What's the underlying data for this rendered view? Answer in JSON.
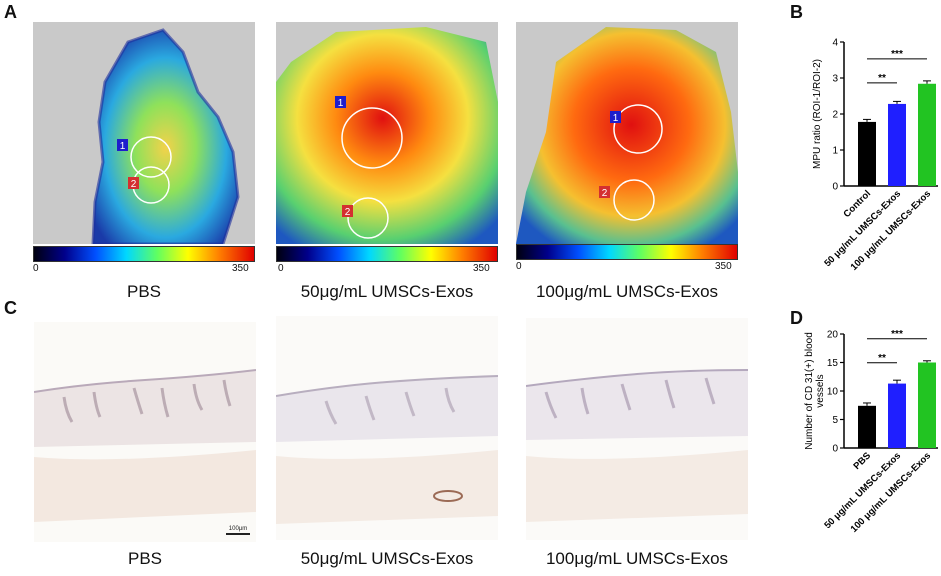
{
  "panel_letters": {
    "a": "A",
    "b": "B",
    "c": "C",
    "d": "D"
  },
  "panel_a": {
    "images": [
      {
        "caption": "PBS",
        "roi1": "1",
        "roi2": "2",
        "cb_min": "0",
        "cb_max": "350"
      },
      {
        "caption": "50μg/mL UMSCs-Exos",
        "roi1": "1",
        "roi2": "2",
        "cb_min": "0",
        "cb_max": "350"
      },
      {
        "caption": "100μg/mL UMSCs-Exos",
        "roi1": "1",
        "roi2": "2",
        "cb_min": "0",
        "cb_max": "350"
      }
    ]
  },
  "panel_c": {
    "images": [
      {
        "caption": "PBS",
        "scale_bar": "100μm"
      },
      {
        "caption": "50μg/mL UMSCs-Exos"
      },
      {
        "caption": "100μg/mL UMSCs-Exos"
      }
    ]
  },
  "colors": {
    "black_bar": "#000000",
    "blue_bar": "#1f1fff",
    "green_bar": "#22c422"
  },
  "chart_data": [
    {
      "type": "bar",
      "panel": "B",
      "categories": [
        "Control",
        "50 μg/mL UMSCs-Exos",
        "100 μg/mL UMSCs-Exos"
      ],
      "values": [
        1.78,
        2.28,
        2.84
      ],
      "errors": [
        0.07,
        0.07,
        0.08
      ],
      "ylabel": "MPU ratio (ROI-1/ROI-2)",
      "ylim": [
        0,
        4
      ],
      "yticks": [
        "0",
        "1",
        "2",
        "3",
        "4"
      ],
      "significance": [
        {
          "from": 0,
          "to": 1,
          "label": "**"
        },
        {
          "from": 0,
          "to": 2,
          "label": "***"
        }
      ]
    },
    {
      "type": "bar",
      "panel": "D",
      "categories": [
        "PBS",
        "50 μg/mL UMSCs-Exos",
        "100 μg/mL UMSCs-Exos"
      ],
      "values": [
        7.4,
        11.3,
        15.0
      ],
      "errors": [
        0.5,
        0.6,
        0.3
      ],
      "ylabel": "Number of CD 31(+) blood vessels",
      "ylabel_lines": [
        "Number of CD 31(+) blood",
        "vessels"
      ],
      "ylim": [
        0,
        20
      ],
      "yticks": [
        "0",
        "5",
        "10",
        "15",
        "20"
      ],
      "significance": [
        {
          "from": 0,
          "to": 1,
          "label": "**"
        },
        {
          "from": 0,
          "to": 2,
          "label": "***"
        }
      ]
    }
  ]
}
